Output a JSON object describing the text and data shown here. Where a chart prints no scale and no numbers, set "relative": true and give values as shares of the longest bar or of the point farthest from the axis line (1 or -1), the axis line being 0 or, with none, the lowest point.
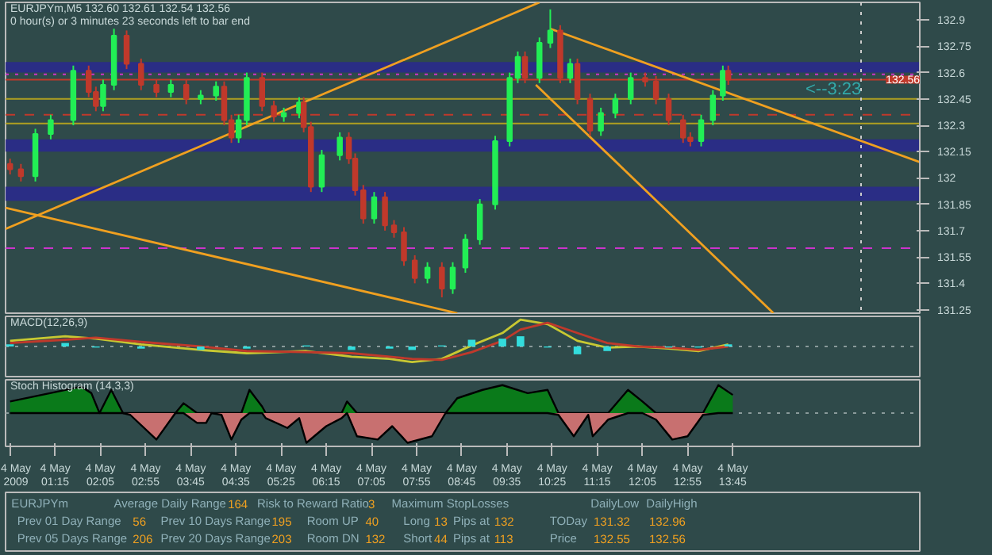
{
  "chart_data": [
    {
      "type": "candlestick",
      "title": "EURJPYm,M5  132.60 132.61 132.54 132.56",
      "subtitle": "0 hour(s) or 3 minutes 23 seconds left to bar end",
      "x": [
        "2009-05-04T00:25",
        "2009-05-04T00:37",
        "2009-05-04T00:53",
        "2009-05-04T01:10",
        "2009-05-04T01:35",
        "2009-05-04T01:52",
        "2009-05-04T02:00",
        "2009-05-04T02:08",
        "2009-05-04T02:20",
        "2009-05-04T02:34",
        "2009-05-04T02:50",
        "2009-05-04T03:07",
        "2009-05-04T03:23",
        "2009-05-04T03:40",
        "2009-05-04T03:56",
        "2009-05-04T04:13",
        "2009-05-04T04:22",
        "2009-05-04T04:30",
        "2009-05-04T04:38",
        "2009-05-04T04:47",
        "2009-05-04T05:04",
        "2009-05-04T05:17",
        "2009-05-04T05:28",
        "2009-05-04T05:45",
        "2009-05-04T05:50",
        "2009-05-04T05:58",
        "2009-05-04T06:10",
        "2009-05-04T06:30",
        "2009-05-04T06:40",
        "2009-05-04T06:47",
        "2009-05-04T06:56",
        "2009-05-04T07:08",
        "2009-05-04T07:20",
        "2009-05-04T07:30",
        "2009-05-04T07:41",
        "2009-05-04T07:53",
        "2009-05-04T08:07",
        "2009-05-04T08:23",
        "2009-05-04T08:35",
        "2009-05-04T08:49",
        "2009-05-04T09:05",
        "2009-05-04T09:22",
        "2009-05-04T09:38",
        "2009-05-04T09:47",
        "2009-05-04T09:55",
        "2009-05-04T10:11",
        "2009-05-04T10:23",
        "2009-05-04T10:34",
        "2009-05-04T10:45",
        "2009-05-04T10:53",
        "2009-05-04T11:07",
        "2009-05-04T11:19",
        "2009-05-04T11:35",
        "2009-05-04T11:52",
        "2009-05-04T12:08",
        "2009-05-04T12:20",
        "2009-05-04T12:34",
        "2009-05-04T12:50",
        "2009-05-04T12:58",
        "2009-05-04T13:10",
        "2009-05-04T13:23",
        "2009-05-04T13:34",
        "2009-05-04T13:40"
      ],
      "ohlc": [
        [
          132.08,
          132.11,
          132.02,
          132.05
        ],
        [
          132.05,
          132.08,
          131.98,
          132.01
        ],
        [
          132.01,
          132.28,
          131.98,
          132.25
        ],
        [
          132.25,
          132.36,
          132.22,
          132.33
        ],
        [
          132.33,
          132.64,
          132.3,
          132.61
        ],
        [
          132.61,
          132.64,
          132.46,
          132.49
        ],
        [
          132.49,
          132.52,
          132.38,
          132.41
        ],
        [
          132.41,
          132.56,
          132.38,
          132.53
        ],
        [
          132.53,
          132.85,
          132.5,
          132.81
        ],
        [
          132.81,
          132.84,
          132.62,
          132.65
        ],
        [
          132.65,
          132.68,
          132.5,
          132.53
        ],
        [
          132.53,
          132.56,
          132.46,
          132.49
        ],
        [
          132.49,
          132.56,
          132.46,
          132.53
        ],
        [
          132.53,
          132.56,
          132.42,
          132.45
        ],
        [
          132.45,
          132.5,
          132.42,
          132.47
        ],
        [
          132.47,
          132.55,
          132.44,
          132.52
        ],
        [
          132.52,
          132.55,
          132.3,
          132.33
        ],
        [
          132.33,
          132.36,
          132.2,
          132.23
        ],
        [
          132.23,
          132.36,
          132.2,
          132.33
        ],
        [
          132.33,
          132.6,
          132.3,
          132.57
        ],
        [
          132.57,
          132.6,
          132.38,
          132.41
        ],
        [
          132.41,
          132.44,
          132.32,
          132.35
        ],
        [
          132.35,
          132.4,
          132.32,
          132.37
        ],
        [
          132.37,
          132.46,
          132.34,
          132.43
        ],
        [
          132.43,
          132.46,
          132.26,
          132.29
        ],
        [
          132.29,
          132.32,
          131.92,
          131.95
        ],
        [
          131.95,
          132.16,
          131.92,
          132.13
        ],
        [
          132.13,
          132.26,
          132.1,
          132.23
        ],
        [
          132.23,
          132.26,
          132.08,
          132.11
        ],
        [
          132.11,
          132.14,
          131.9,
          131.93
        ],
        [
          131.93,
          131.96,
          131.74,
          131.77
        ],
        [
          131.77,
          131.92,
          131.74,
          131.89
        ],
        [
          131.89,
          131.92,
          131.7,
          131.73
        ],
        [
          131.73,
          131.76,
          131.66,
          131.69
        ],
        [
          131.69,
          131.72,
          131.5,
          131.53
        ],
        [
          131.53,
          131.56,
          131.4,
          131.43
        ],
        [
          131.43,
          131.52,
          131.4,
          131.49
        ],
        [
          131.49,
          131.52,
          131.32,
          131.37
        ],
        [
          131.37,
          131.52,
          131.34,
          131.49
        ],
        [
          131.49,
          131.68,
          131.46,
          131.65
        ],
        [
          131.65,
          131.88,
          131.62,
          131.85
        ],
        [
          131.85,
          132.24,
          131.82,
          132.21
        ],
        [
          132.21,
          132.6,
          132.18,
          132.57
        ],
        [
          132.57,
          132.72,
          132.54,
          132.69
        ],
        [
          132.69,
          132.72,
          132.54,
          132.57
        ],
        [
          132.57,
          132.8,
          132.54,
          132.77
        ],
        [
          132.77,
          132.96,
          132.74,
          132.84
        ],
        [
          132.84,
          132.87,
          132.54,
          132.57
        ],
        [
          132.57,
          132.68,
          132.54,
          132.65
        ],
        [
          132.65,
          132.68,
          132.42,
          132.45
        ],
        [
          132.45,
          132.48,
          132.24,
          132.27
        ],
        [
          132.27,
          132.4,
          132.24,
          132.37
        ],
        [
          132.37,
          132.48,
          132.34,
          132.45
        ],
        [
          132.45,
          132.6,
          132.42,
          132.57
        ],
        [
          132.57,
          132.6,
          132.52,
          132.55
        ],
        [
          132.55,
          132.58,
          132.42,
          132.45
        ],
        [
          132.45,
          132.48,
          132.3,
          132.33
        ],
        [
          132.33,
          132.36,
          132.2,
          132.23
        ],
        [
          132.23,
          132.26,
          132.18,
          132.21
        ],
        [
          132.21,
          132.36,
          132.18,
          132.33
        ],
        [
          132.33,
          132.5,
          132.3,
          132.47
        ],
        [
          132.47,
          132.64,
          132.44,
          132.61
        ],
        [
          132.61,
          132.64,
          132.53,
          132.56
        ]
      ],
      "colors": [
        "#c0392b",
        "#c0392b",
        "#22ee55",
        "#22ee55",
        "#22ee55",
        "#c0392b",
        "#c0392b",
        "#22ee55",
        "#22ee55",
        "#c0392b",
        "#c0392b",
        "#c0392b",
        "#22ee55",
        "#c0392b",
        "#22ee55",
        "#22ee55",
        "#c0392b",
        "#c0392b",
        "#22ee55",
        "#22ee55",
        "#c0392b",
        "#c0392b",
        "#22ee55",
        "#22ee55",
        "#c0392b",
        "#c0392b",
        "#22ee55",
        "#22ee55",
        "#c0392b",
        "#c0392b",
        "#c0392b",
        "#22ee55",
        "#c0392b",
        "#c0392b",
        "#c0392b",
        "#c0392b",
        "#22ee55",
        "#c0392b",
        "#22ee55",
        "#22ee55",
        "#22ee55",
        "#22ee55",
        "#22ee55",
        "#22ee55",
        "#c0392b",
        "#22ee55",
        "#22ee55",
        "#c0392b",
        "#22ee55",
        "#c0392b",
        "#c0392b",
        "#22ee55",
        "#22ee55",
        "#22ee55",
        "#c0392b",
        "#c0392b",
        "#c0392b",
        "#c0392b",
        "#c0392b",
        "#22ee55",
        "#22ee55",
        "#22ee55",
        "#c0392b"
      ],
      "series": [
        {
          "type": "line",
          "color": "#f0a020",
          "x": [
            "2009-05-04T00:20",
            "2009-05-04T10:11"
          ],
          "values": [
            131.71,
            133.0
          ]
        },
        {
          "type": "line",
          "color": "#f0a020",
          "x": [
            "2009-05-04T00:20",
            "2009-05-04T08:40"
          ],
          "values": [
            131.83,
            131.23
          ]
        },
        {
          "type": "line",
          "color": "#f0a020",
          "x": [
            "2009-05-04T10:23",
            "2009-05-04T17:12"
          ],
          "values": [
            132.85,
            132.09
          ]
        },
        {
          "type": "line",
          "color": "#f0a020",
          "x": [
            "2009-05-04T10:07",
            "2009-05-04T14:30"
          ],
          "values": [
            132.53,
            131.23
          ]
        }
      ],
      "xlim": [
        "2009-05-04T00:20",
        "2009-05-04T17:12"
      ],
      "ylim": [
        131.23,
        133.0
      ],
      "yticks": [
        132.9,
        132.75,
        132.6,
        132.45,
        132.3,
        132.15,
        132.0,
        131.85,
        131.7,
        131.55,
        131.4,
        131.25
      ],
      "tick_labels": "y",
      "bands": [
        {
          "axis": "y",
          "from": 132.6,
          "to": 132.66,
          "color": "#2a2a8c"
        },
        {
          "axis": "y",
          "from": 132.15,
          "to": 132.22,
          "color": "#2a2a8c"
        },
        {
          "axis": "y",
          "from": 131.87,
          "to": 131.95,
          "color": "#2a2a8c"
        }
      ],
      "ref_lines": [
        {
          "axis": "y",
          "value": 132.56,
          "label": "132.56",
          "color": "#c0392b",
          "line_style": "solid"
        },
        {
          "axis": "y",
          "value": 132.59,
          "color": "#cc33cc",
          "line_style": "dotted"
        },
        {
          "axis": "y",
          "value": 132.45,
          "color": "#b0a020",
          "line_style": "solid"
        },
        {
          "axis": "y",
          "value": 132.36,
          "color": "#c0392b",
          "line_style": "dashed"
        },
        {
          "axis": "y",
          "value": 132.31,
          "color": "#b0a020",
          "line_style": "solid"
        },
        {
          "axis": "y",
          "value": 131.6,
          "color": "#cc33cc",
          "line_style": "dashed"
        },
        {
          "axis": "x",
          "value": "2009-05-04T16:07",
          "color": "#cccccc",
          "line_style": "dotted"
        }
      ],
      "annotations": [
        "<--3:23"
      ]
    },
    {
      "type": "line",
      "title": "MACD(12,26,9)",
      "relative": true,
      "ref_lines": [
        {
          "axis": "y",
          "value": 0,
          "color": "#8a9a9a",
          "line_style": "dotted"
        }
      ],
      "tick_labels": false,
      "xlim": [
        "2009-05-04T00:20",
        "2009-05-04T17:12"
      ],
      "x": [
        "2009-05-04T00:25",
        "2009-05-04T01:26",
        "2009-05-04T02:00",
        "2009-05-04T02:50",
        "2009-05-04T03:56",
        "2009-05-04T04:47",
        "2009-05-04T05:53",
        "2009-05-04T06:43",
        "2009-05-04T07:25",
        "2009-05-04T07:50",
        "2009-05-04T08:23",
        "2009-05-04T08:56",
        "2009-05-04T09:30",
        "2009-05-04T09:50",
        "2009-05-04T10:20",
        "2009-05-04T10:53",
        "2009-05-04T11:26",
        "2009-05-04T12:00",
        "2009-05-04T12:34",
        "2009-05-04T13:07",
        "2009-05-04T13:40"
      ],
      "series": [
        {
          "type": "line",
          "color": "#c8c832",
          "values": [
            0.21,
            0.38,
            0.29,
            0.08,
            -0.13,
            -0.25,
            -0.17,
            -0.38,
            -0.46,
            -0.58,
            -0.46,
            0.04,
            0.5,
            1,
            0.83,
            0.21,
            -0.04,
            0,
            -0.08,
            -0.17,
            0.08
          ]
        },
        {
          "type": "line",
          "color": "#c0392b",
          "values": [
            0.13,
            0.25,
            0.33,
            0.17,
            0,
            -0.17,
            -0.21,
            -0.25,
            -0.38,
            -0.46,
            -0.5,
            -0.21,
            0.21,
            0.63,
            0.88,
            0.5,
            0.13,
            0,
            -0.04,
            -0.13,
            0
          ]
        },
        {
          "type": "bar",
          "color": "#33dddd",
          "values": [
            0.08,
            0.13,
            -0.04,
            -0.08,
            -0.13,
            -0.08,
            0.04,
            -0.13,
            -0.08,
            -0.13,
            0.04,
            0.25,
            0.29,
            0.38,
            -0.04,
            -0.29,
            -0.17,
            0,
            -0.04,
            -0.04,
            0.08
          ]
        }
      ]
    },
    {
      "type": "area",
      "title": "Stoch Histogram (14,3,3)",
      "relative": true,
      "ref_lines": [
        {
          "axis": "y",
          "value": 0,
          "color": "#8a9a9a",
          "line_style": "dotted"
        }
      ],
      "tick_labels": "x",
      "xlim": [
        "2009-05-04T00:20",
        "2009-05-04T17:12"
      ],
      "x": [
        "2009-05-04T00:25",
        "2009-05-04T01:44",
        "2009-05-04T01:55",
        "2009-05-04T02:04",
        "2009-05-04T02:17",
        "2009-05-04T02:30",
        "2009-05-04T02:38",
        "2009-05-04T03:07",
        "2009-05-04T03:28",
        "2009-05-04T03:37",
        "2009-05-04T03:52",
        "2009-05-04T04:02",
        "2009-05-04T04:08",
        "2009-05-04T04:19",
        "2009-05-04T04:30",
        "2009-05-04T04:41",
        "2009-05-04T04:50",
        "2009-05-04T05:04",
        "2009-05-04T05:08",
        "2009-05-04T05:32",
        "2009-05-04T05:45",
        "2009-05-04T05:53",
        "2009-05-04T06:15",
        "2009-05-04T06:32",
        "2009-05-04T06:38",
        "2009-05-04T06:49",
        "2009-05-04T07:12",
        "2009-05-04T07:28",
        "2009-05-04T07:45",
        "2009-05-04T08:12",
        "2009-05-04T08:27",
        "2009-05-04T08:40",
        "2009-05-04T09:08",
        "2009-05-04T09:30",
        "2009-05-04T09:58",
        "2009-05-04T10:20",
        "2009-05-04T10:32",
        "2009-05-04T10:49",
        "2009-05-04T11:05",
        "2009-05-04T11:10",
        "2009-05-04T11:27",
        "2009-05-04T11:49",
        "2009-05-04T12:05",
        "2009-05-04T12:20",
        "2009-05-04T12:38",
        "2009-05-04T12:55",
        "2009-05-04T13:12",
        "2009-05-04T13:29",
        "2009-05-04T13:45"
      ],
      "series": [
        {
          "color": "#0a7a1a",
          "values": [
            0.39,
            0.89,
            0.67,
            0,
            0.78,
            0,
            0,
            0,
            0,
            0.33,
            0,
            0,
            0,
            0,
            0,
            0,
            0.78,
            0.22,
            0,
            0,
            0,
            0,
            0,
            0,
            0.39,
            0,
            0,
            0,
            0,
            0,
            0,
            0.5,
            0.78,
            0.94,
            0.67,
            0.78,
            0,
            0,
            0,
            0,
            0,
            0.78,
            0.39,
            0,
            0,
            0,
            0,
            0.94,
            0.61
          ]
        },
        {
          "color": "#c87070",
          "values": [
            0,
            0,
            0,
            0,
            0,
            0,
            -0.06,
            -0.89,
            0,
            0,
            -0.33,
            -0.33,
            0,
            -0.06,
            -0.89,
            -0.22,
            0,
            0,
            -0.17,
            -0.5,
            -0.17,
            -1,
            -0.44,
            -0.17,
            0,
            -0.78,
            -0.89,
            -0.44,
            -1,
            -0.78,
            0,
            0,
            0,
            0,
            0,
            0,
            -0.06,
            -0.78,
            -0.06,
            -0.78,
            -0.22,
            0,
            0,
            -0.22,
            -0.89,
            -0.78,
            -0.06,
            0,
            0
          ]
        }
      ],
      "xticks": [
        {
          "value": "2009-05-04T00:25",
          "label": "4 May 2009"
        },
        {
          "value": "2009-05-04T01:15",
          "label": "4 May 01:15"
        },
        {
          "value": "2009-05-04T02:05",
          "label": "4 May 02:05"
        },
        {
          "value": "2009-05-04T02:55",
          "label": "4 May 02:55"
        },
        {
          "value": "2009-05-04T03:45",
          "label": "4 May 03:45"
        },
        {
          "value": "2009-05-04T04:35",
          "label": "4 May 04:35"
        },
        {
          "value": "2009-05-04T05:25",
          "label": "4 May 05:25"
        },
        {
          "value": "2009-05-04T06:15",
          "label": "4 May 06:15"
        },
        {
          "value": "2009-05-04T07:05",
          "label": "4 May 07:05"
        },
        {
          "value": "2009-05-04T07:55",
          "label": "4 May 07:55"
        },
        {
          "value": "2009-05-04T08:45",
          "label": "4 May 08:45"
        },
        {
          "value": "2009-05-04T09:35",
          "label": "4 May 09:35"
        },
        {
          "value": "2009-05-04T10:25",
          "label": "4 May 10:25"
        },
        {
          "value": "2009-05-04T11:15",
          "label": "4 May 11:15"
        },
        {
          "value": "2009-05-04T12:05",
          "label": "4 May 12:05"
        },
        {
          "value": "2009-05-04T12:55",
          "label": "4 May 12:55"
        },
        {
          "value": "2009-05-04T13:45",
          "label": "4 May 13:45"
        }
      ]
    },
    {
      "type": "other",
      "annotations": [
        "EURJPYm",
        "Average Daily Range",
        "164",
        "Risk to Reward Ratio",
        "3",
        "Maximum StopLosses",
        "DailyLow",
        "DailyHigh",
        "Prev 01 Day Range",
        "56",
        "Prev 10 Days Range",
        "195",
        "Room UP",
        "40",
        "Long",
        "13",
        "Pips at",
        "132",
        "TODay",
        "131.32",
        "132.96",
        "Prev 05 Days Range",
        "206",
        "Prev 20 Days Range",
        "203",
        "Room DN",
        "132",
        "Short",
        "44",
        "Pips at",
        "113",
        "Price",
        "132.55",
        "132.56"
      ]
    }
  ]
}
